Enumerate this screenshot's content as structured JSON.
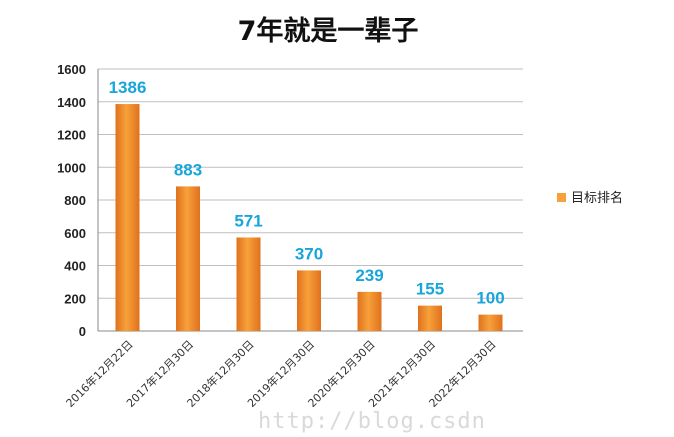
{
  "watermark": "http://blog.csdn",
  "colors": {
    "bar_top": "#f7a13a",
    "bar_bottom": "#e0711d",
    "data_label": "#18a5da",
    "grid": "#bfbfbf",
    "axis": "#888888"
  },
  "chart_data": {
    "type": "bar",
    "title": "7年就是一辈子",
    "xlabel": "",
    "ylabel": "",
    "categories": [
      "2016年12月22日",
      "2017年12月30日",
      "2018年12月30日",
      "2019年12月30日",
      "2020年12月30日",
      "2021年12月30日",
      "2022年12月30日"
    ],
    "series": [
      {
        "name": "目标排名",
        "values": [
          1386,
          883,
          571,
          370,
          239,
          155,
          100
        ]
      }
    ],
    "data_labels": [
      "1386",
      "883",
      "571",
      "370",
      "239",
      "155",
      "100"
    ],
    "ylim": [
      0,
      1600
    ],
    "yticks": [
      0,
      200,
      400,
      600,
      800,
      1000,
      1200,
      1400,
      1600
    ],
    "ytick_labels": [
      "0",
      "200",
      "400",
      "600",
      "800",
      "1000",
      "1200",
      "1400",
      "1600"
    ],
    "grid": true,
    "legend": "right"
  }
}
